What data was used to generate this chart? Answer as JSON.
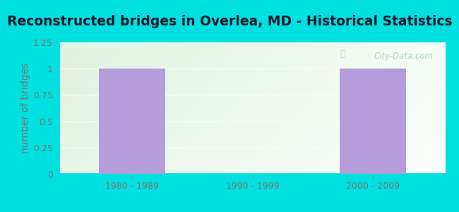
{
  "title": "Reconstructed bridges in Overlea, MD - Historical Statistics",
  "categories": [
    "1980 - 1989",
    "1990 - 1999",
    "2000 - 2009"
  ],
  "values": [
    1,
    0,
    1
  ],
  "bar_color": "#b39ddb",
  "ylabel": "number of bridges",
  "ylim": [
    0,
    1.25
  ],
  "yticks": [
    0,
    0.25,
    0.5,
    0.75,
    1.0,
    1.25
  ],
  "ytick_labels": [
    "0",
    "0.25",
    "0.5",
    "0.75",
    "1",
    "1.25"
  ],
  "background_outer": "#00e0e0",
  "title_fontsize": 13.5,
  "ylabel_fontsize": 10,
  "tick_fontsize": 9,
  "tick_color": "#777777",
  "title_color": "#1a1a2e",
  "watermark": "City-Data.com",
  "grid_color": "#dddddd",
  "bar_width": 0.55
}
